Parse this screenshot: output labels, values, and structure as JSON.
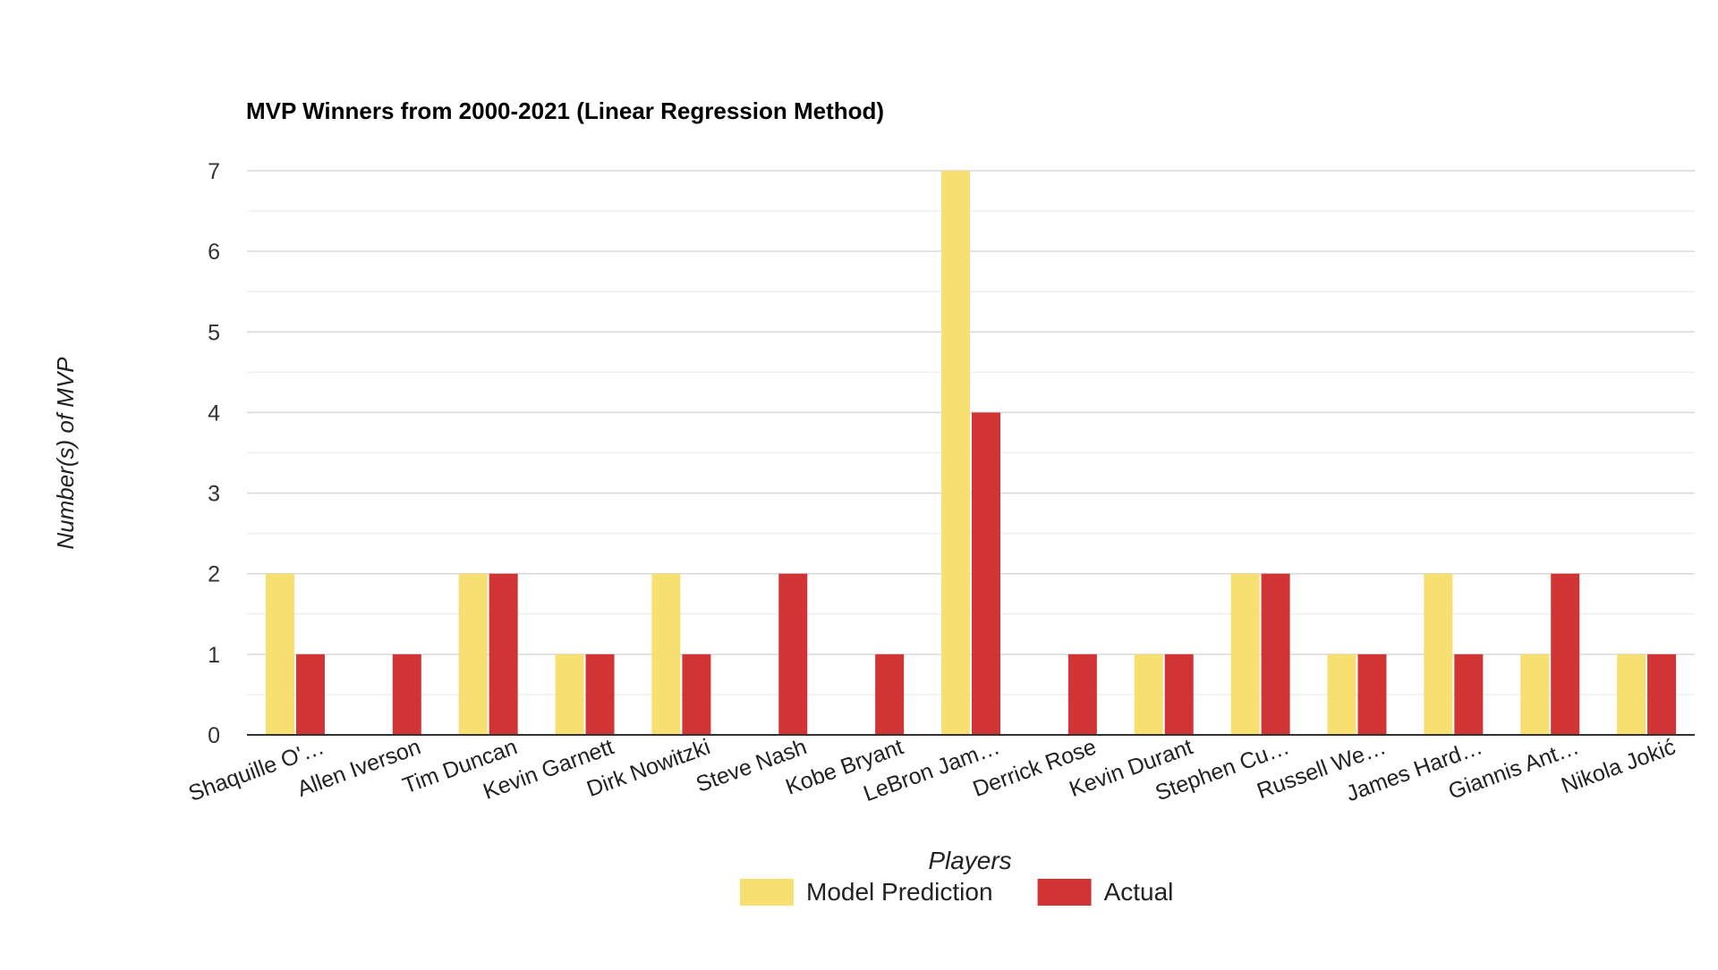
{
  "chart_data": {
    "type": "bar",
    "title": "MVP Winners from 2000-2021 (Linear Regression Method)",
    "xlabel": "Players",
    "ylabel": "Number(s) of MVP",
    "ylim": [
      0,
      7
    ],
    "yticks": [
      0,
      1,
      2,
      3,
      4,
      5,
      6,
      7
    ],
    "minor_gridlines": true,
    "legend_position": "bottom",
    "categories": [
      "Shaquille O'…",
      "Allen Iverson",
      "Tim Duncan",
      "Kevin Garnett",
      "Dirk Nowitzki",
      "Steve Nash",
      "Kobe Bryant",
      "LeBron Jam…",
      "Derrick Rose",
      "Kevin Durant",
      "Stephen Cu…",
      "Russell We…",
      "James Hard…",
      "Giannis Ant…",
      "Nikola Jokić"
    ],
    "series": [
      {
        "name": "Model Prediction",
        "color": "#f7df72",
        "values": [
          2,
          0,
          2,
          1,
          2,
          0,
          0,
          7,
          0,
          1,
          2,
          1,
          2,
          1,
          1
        ]
      },
      {
        "name": "Actual",
        "color": "#d13434",
        "values": [
          1,
          1,
          2,
          1,
          1,
          2,
          1,
          4,
          1,
          1,
          2,
          1,
          1,
          2,
          1
        ]
      }
    ]
  }
}
